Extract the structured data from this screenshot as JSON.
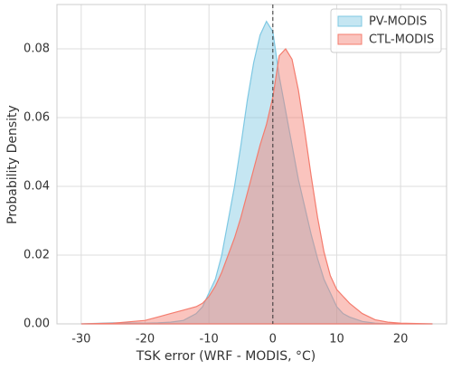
{
  "chart_data": {
    "type": "area",
    "x_label": "TSK error (WRF - MODIS, °C)",
    "y_label": "Probability Density",
    "x": [
      -30,
      -25,
      -20,
      -18,
      -16,
      -14,
      -12,
      -11,
      -10,
      -9,
      -8,
      -7,
      -6,
      -5,
      -4,
      -3,
      -2,
      -1,
      0,
      1,
      2,
      3,
      4,
      5,
      6,
      7,
      8,
      9,
      10,
      11,
      12,
      14,
      16,
      18,
      20,
      25
    ],
    "series": [
      {
        "name": "PV-MODIS",
        "color": "#7ec8e3",
        "values": [
          0,
          0.0003,
          0.0002,
          0.0003,
          0.0005,
          0.001,
          0.003,
          0.005,
          0.009,
          0.013,
          0.02,
          0.03,
          0.04,
          0.052,
          0.065,
          0.076,
          0.084,
          0.088,
          0.085,
          0.072,
          0.062,
          0.052,
          0.042,
          0.034,
          0.026,
          0.019,
          0.013,
          0.009,
          0.005,
          0.003,
          0.002,
          0.0007,
          0.0002,
          0,
          0,
          0
        ]
      },
      {
        "name": "CTL-MODIS",
        "color": "#f47c6e",
        "values": [
          0,
          0.0002,
          0.001,
          0.002,
          0.003,
          0.004,
          0.005,
          0.006,
          0.008,
          0.011,
          0.015,
          0.02,
          0.025,
          0.031,
          0.038,
          0.045,
          0.052,
          0.058,
          0.066,
          0.078,
          0.08,
          0.077,
          0.068,
          0.056,
          0.043,
          0.031,
          0.021,
          0.014,
          0.01,
          0.008,
          0.006,
          0.003,
          0.0012,
          0.0005,
          0.0002,
          0
        ]
      }
    ],
    "xlim": [
      -33.8,
      27.2
    ],
    "ylim": [
      0,
      0.0929
    ],
    "xticks": [
      -30,
      -20,
      -10,
      0,
      10,
      20
    ],
    "yticks": [
      {
        "value": 0,
        "label": "0.00"
      },
      {
        "value": 0.02,
        "label": "0.02"
      },
      {
        "value": 0.04,
        "label": "0.04"
      },
      {
        "value": 0.06,
        "label": "0.06"
      },
      {
        "value": 0.08,
        "label": "0.08"
      }
    ],
    "vline_x": 0,
    "grid": true,
    "legend": "upper right"
  }
}
